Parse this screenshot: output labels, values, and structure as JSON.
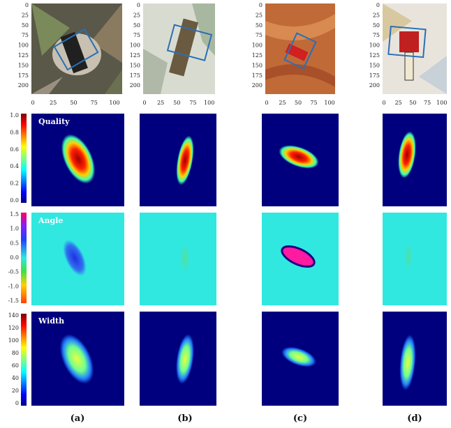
{
  "top_row": {
    "yticks": [
      "0",
      "25",
      "50",
      "75",
      "100",
      "125",
      "150",
      "175",
      "200"
    ],
    "xticks": [
      "0",
      "25",
      "50",
      "75",
      "100"
    ]
  },
  "rows": [
    {
      "label": "Quality",
      "colorbar_ticks": [
        "1.0",
        "0.8",
        "0.6",
        "0.4",
        "0.2",
        "0.0"
      ]
    },
    {
      "label": "Angle",
      "colorbar_ticks": [
        "1.5",
        "1.0",
        "0.5",
        "0.0",
        "-0.5",
        "-1.0",
        "-1.5"
      ]
    },
    {
      "label": "Width",
      "colorbar_ticks": [
        "140",
        "120",
        "100",
        "80",
        "60",
        "40",
        "20",
        "0"
      ]
    }
  ],
  "captions": [
    "(a)",
    "(b)",
    "(c)",
    "(d)"
  ]
}
